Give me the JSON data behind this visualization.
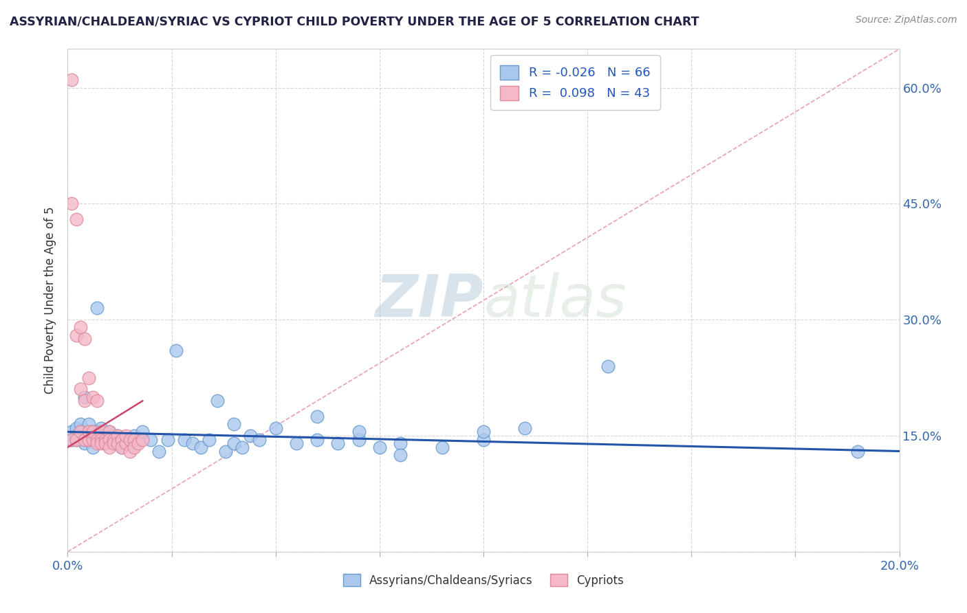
{
  "title": "ASSYRIAN/CHALDEAN/SYRIAC VS CYPRIOT CHILD POVERTY UNDER THE AGE OF 5 CORRELATION CHART",
  "source": "Source: ZipAtlas.com",
  "ylabel": "Child Poverty Under the Age of 5",
  "xlim": [
    0.0,
    0.2
  ],
  "ylim": [
    0.0,
    0.65
  ],
  "xtick_positions": [
    0.0,
    0.025,
    0.05,
    0.075,
    0.1,
    0.125,
    0.15,
    0.175,
    0.2
  ],
  "xtick_labels": [
    "0.0%",
    "",
    "",
    "",
    "",
    "",
    "",
    "",
    "20.0%"
  ],
  "ytick_positions": [
    0.0,
    0.15,
    0.3,
    0.45,
    0.6
  ],
  "ytick_labels_right": [
    "",
    "15.0%",
    "30.0%",
    "45.0%",
    "60.0%"
  ],
  "blue_R": -0.026,
  "blue_N": 66,
  "pink_R": 0.098,
  "pink_N": 43,
  "blue_color": "#aac8ee",
  "pink_color": "#f4b8c8",
  "blue_edge": "#6699cc",
  "pink_edge": "#dd8899",
  "blue_trend_color": "#2255aa",
  "pink_trend_color": "#cc4466",
  "diag_color": "#e8a0b0",
  "watermark": "ZIPatlas",
  "watermark_color": "#c8ddf0",
  "background_color": "#ffffff",
  "grid_color": "#cccccc",
  "blue_x": [
    0.001,
    0.001,
    0.002,
    0.002,
    0.002,
    0.003,
    0.003,
    0.003,
    0.004,
    0.004,
    0.004,
    0.005,
    0.005,
    0.005,
    0.006,
    0.006,
    0.006,
    0.007,
    0.007,
    0.007,
    0.008,
    0.008,
    0.009,
    0.009,
    0.01,
    0.01,
    0.011,
    0.011,
    0.012,
    0.013,
    0.014,
    0.015,
    0.016,
    0.017,
    0.018,
    0.02,
    0.022,
    0.024,
    0.026,
    0.028,
    0.03,
    0.032,
    0.034,
    0.036,
    0.038,
    0.04,
    0.042,
    0.044,
    0.046,
    0.05,
    0.055,
    0.06,
    0.065,
    0.07,
    0.075,
    0.08,
    0.09,
    0.1,
    0.11,
    0.13,
    0.04,
    0.06,
    0.07,
    0.08,
    0.1,
    0.19
  ],
  "blue_y": [
    0.155,
    0.145,
    0.16,
    0.15,
    0.145,
    0.155,
    0.145,
    0.165,
    0.15,
    0.14,
    0.2,
    0.145,
    0.155,
    0.165,
    0.135,
    0.145,
    0.155,
    0.145,
    0.155,
    0.315,
    0.145,
    0.16,
    0.14,
    0.15,
    0.145,
    0.155,
    0.145,
    0.15,
    0.15,
    0.135,
    0.145,
    0.14,
    0.15,
    0.145,
    0.155,
    0.145,
    0.13,
    0.145,
    0.26,
    0.145,
    0.14,
    0.135,
    0.145,
    0.195,
    0.13,
    0.14,
    0.135,
    0.15,
    0.145,
    0.16,
    0.14,
    0.145,
    0.14,
    0.145,
    0.135,
    0.14,
    0.135,
    0.145,
    0.16,
    0.24,
    0.165,
    0.175,
    0.155,
    0.125,
    0.155,
    0.13
  ],
  "pink_x": [
    0.001,
    0.001,
    0.001,
    0.002,
    0.002,
    0.002,
    0.003,
    0.003,
    0.003,
    0.004,
    0.004,
    0.004,
    0.005,
    0.005,
    0.005,
    0.006,
    0.006,
    0.006,
    0.007,
    0.007,
    0.007,
    0.008,
    0.008,
    0.008,
    0.009,
    0.009,
    0.01,
    0.01,
    0.01,
    0.011,
    0.011,
    0.012,
    0.012,
    0.013,
    0.013,
    0.014,
    0.014,
    0.015,
    0.015,
    0.016,
    0.016,
    0.017,
    0.018
  ],
  "pink_y": [
    0.61,
    0.45,
    0.145,
    0.43,
    0.28,
    0.145,
    0.29,
    0.21,
    0.155,
    0.195,
    0.275,
    0.145,
    0.225,
    0.145,
    0.155,
    0.2,
    0.145,
    0.155,
    0.145,
    0.195,
    0.14,
    0.155,
    0.145,
    0.14,
    0.145,
    0.14,
    0.155,
    0.145,
    0.135,
    0.145,
    0.14,
    0.15,
    0.14,
    0.145,
    0.135,
    0.14,
    0.15,
    0.145,
    0.13,
    0.145,
    0.135,
    0.14,
    0.145
  ]
}
